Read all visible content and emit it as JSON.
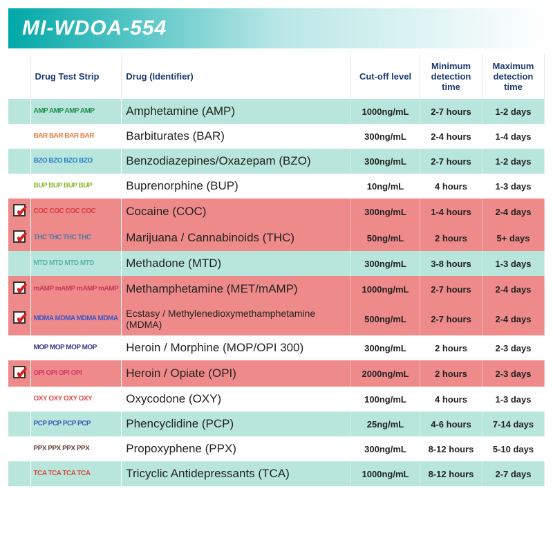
{
  "header": {
    "title": "MI-WDOA-554"
  },
  "columns": {
    "strip": "Drug Test Strip",
    "drug": "Drug (Identifier)",
    "cutoff": "Cut-off level",
    "min": "Minimum detection time",
    "max": "Maximum detection time"
  },
  "rows": [
    {
      "checked": false,
      "code": "AMP",
      "strip_color": "#1e8a4a",
      "drug": "Amphetamine (AMP)",
      "cutoff": "1000ng/mL",
      "min": "2-7 hours",
      "max": "1-2 days",
      "bg": "alt"
    },
    {
      "checked": false,
      "code": "BAR",
      "strip_color": "#e67a3a",
      "drug": "Barbiturates (BAR)",
      "cutoff": "300ng/mL",
      "min": "2-4 hours",
      "max": "1-4 days",
      "bg": ""
    },
    {
      "checked": false,
      "code": "BZO",
      "strip_color": "#2a7ac8",
      "drug": "Benzodiazepines/Oxazepam (BZO)",
      "cutoff": "300ng/mL",
      "min": "2-7 hours",
      "max": "1-2 days",
      "bg": "alt"
    },
    {
      "checked": false,
      "code": "BUP",
      "strip_color": "#8ab82e",
      "drug": "Buprenorphine (BUP)",
      "cutoff": "10ng/mL",
      "min": "4 hours",
      "max": "1-3 days",
      "bg": ""
    },
    {
      "checked": true,
      "code": "COC",
      "strip_color": "#d63a3a",
      "drug": "Cocaine (COC)",
      "cutoff": "300ng/mL",
      "min": "1-4 hours",
      "max": "2-4 days",
      "bg": "checked"
    },
    {
      "checked": true,
      "code": "THC",
      "strip_color": "#4a7aa8",
      "drug": "Marijuana / Cannabinoids (THC)",
      "cutoff": "50ng/mL",
      "min": "2 hours",
      "max": "5+ days",
      "bg": "checked"
    },
    {
      "checked": false,
      "code": "MTD",
      "strip_color": "#5ab8a8",
      "drug": "Methadone (MTD)",
      "cutoff": "300ng/mL",
      "min": "3-8 hours",
      "max": "1-3 days",
      "bg": "alt"
    },
    {
      "checked": true,
      "code": "mAMP",
      "strip_color": "#c83a5a",
      "drug": "Methamphetamine (MET/mAMP)",
      "cutoff": "1000ng/mL",
      "min": "2-7 hours",
      "max": "2-4 days",
      "bg": "checked"
    },
    {
      "checked": true,
      "code": "MDMA",
      "strip_color": "#3a5ac8",
      "drug": "Ecstasy / Methylenedioxymethamphetamine (MDMA)",
      "cutoff": "500ng/mL",
      "min": "2-7 hours",
      "max": "2-4 days",
      "bg": "checked",
      "cls": "mdma"
    },
    {
      "checked": false,
      "code": "MOP",
      "strip_color": "#3a3a8a",
      "drug": "Heroin / Morphine (MOP/OPI 300)",
      "cutoff": "300ng/mL",
      "min": "2 hours",
      "max": "2-3 days",
      "bg": ""
    },
    {
      "checked": true,
      "code": "OPI",
      "strip_color": "#d63a6a",
      "drug": "Heroin / Opiate (OPI)",
      "cutoff": "2000ng/mL",
      "min": "2 hours",
      "max": "2-3 days",
      "bg": "checked"
    },
    {
      "checked": false,
      "code": "OXY",
      "strip_color": "#e64a4a",
      "drug": "Oxycodone (OXY)",
      "cutoff": "100ng/mL",
      "min": "4 hours",
      "max": "1-3 days",
      "bg": ""
    },
    {
      "checked": false,
      "code": "PCP",
      "strip_color": "#3a5ab8",
      "drug": "Phencyclidine (PCP)",
      "cutoff": "25ng/mL",
      "min": "4-6 hours",
      "max": "7-14 days",
      "bg": "alt"
    },
    {
      "checked": false,
      "code": "PPX",
      "strip_color": "#6a4a3a",
      "drug": "Propoxyphene (PPX)",
      "cutoff": "300ng/mL",
      "min": "8-12 hours",
      "max": "5-10 days",
      "bg": ""
    },
    {
      "checked": false,
      "code": "TCA",
      "strip_color": "#d64a3a",
      "drug": "Tricyclic Antidepressants (TCA)",
      "cutoff": "1000ng/mL",
      "min": "8-12 hours",
      "max": "2-7 days",
      "bg": "alt"
    }
  ],
  "styling": {
    "header_gradient_start": "#00a8a8",
    "header_gradient_end": "#ffffff",
    "alt_row_bg": "#b8e6dc",
    "checked_row_bg": "#ef8a8a",
    "header_text_color": "#1a3a6e",
    "check_color": "#d62020"
  }
}
